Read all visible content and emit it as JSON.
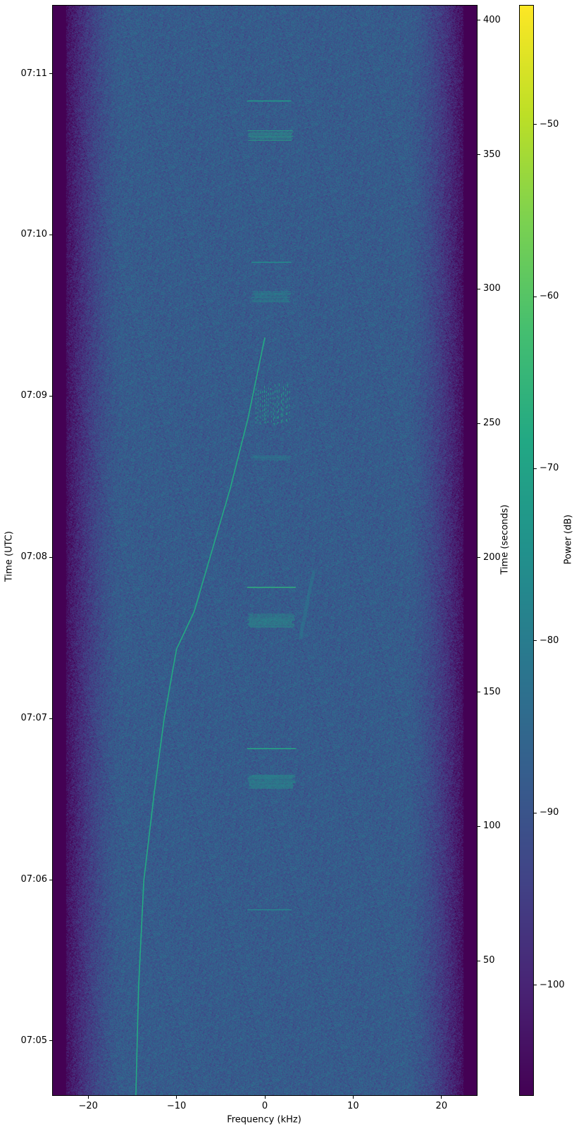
{
  "chart_data": {
    "type": "heatmap",
    "xlabel": "Frequency (kHz)",
    "ylabel": "Time (UTC)",
    "y2label": "Time (seconds)",
    "colorbar_label": "Power (dB)",
    "colormap": "viridis",
    "xlim": [
      -24,
      24
    ],
    "ylim": [
      0,
      405.5
    ],
    "clim": [
      -106.4,
      -43.1
    ],
    "grid": false,
    "x_ticks": [
      {
        "v": -20,
        "label": "−20"
      },
      {
        "v": -10,
        "label": "−10"
      },
      {
        "v": 0,
        "label": "0"
      },
      {
        "v": 10,
        "label": "10"
      },
      {
        "v": 20,
        "label": "20"
      }
    ],
    "y_ticks_utc": [
      {
        "v": 20.2,
        "label": "07:05"
      },
      {
        "v": 80.2,
        "label": "07:06"
      },
      {
        "v": 140.2,
        "label": "07:07"
      },
      {
        "v": 200.2,
        "label": "07:08"
      },
      {
        "v": 260.2,
        "label": "07:09"
      },
      {
        "v": 320.2,
        "label": "07:10"
      },
      {
        "v": 380.2,
        "label": "07:11"
      }
    ],
    "y_ticks_seconds": [
      {
        "v": 50,
        "label": "50"
      },
      {
        "v": 100,
        "label": "100"
      },
      {
        "v": 150,
        "label": "150"
      },
      {
        "v": 200,
        "label": "200"
      },
      {
        "v": 250,
        "label": "250"
      },
      {
        "v": 300,
        "label": "300"
      },
      {
        "v": 350,
        "label": "350"
      },
      {
        "v": 400,
        "label": "400"
      }
    ],
    "colorbar_ticks": [
      {
        "v": -50,
        "label": "−50"
      },
      {
        "v": -60,
        "label": "−60"
      },
      {
        "v": -70,
        "label": "−70"
      },
      {
        "v": -80,
        "label": "−80"
      },
      {
        "v": -90,
        "label": "−90"
      },
      {
        "v": -100,
        "label": "−100"
      }
    ],
    "noise_floor_db": -88,
    "band_edge_khz": 22.5,
    "chirp": {
      "power_db": -68,
      "points": [
        [
          -14.6,
          0
        ],
        [
          -14.3,
          40
        ],
        [
          -13.7,
          80
        ],
        [
          -12.5,
          113
        ],
        [
          -11.4,
          140
        ],
        [
          -10,
          166
        ],
        [
          -8,
          180
        ],
        [
          -5.6,
          207
        ],
        [
          -3.9,
          226
        ],
        [
          -1.9,
          252
        ],
        [
          0,
          282
        ]
      ]
    },
    "bursts": [
      {
        "kind": "line",
        "t": 69,
        "f": [
          -2,
          3
        ],
        "power_db": -78
      },
      {
        "kind": "band",
        "t": [
          114,
          119
        ],
        "f": [
          -2,
          3.5
        ],
        "power_db": -72
      },
      {
        "kind": "line",
        "t": 129,
        "f": [
          -2,
          3.5
        ],
        "power_db": -68
      },
      {
        "kind": "band",
        "t": [
          174,
          179
        ],
        "f": [
          -2,
          3.5
        ],
        "power_db": -70
      },
      {
        "kind": "line",
        "t": 189,
        "f": [
          -2,
          3.5
        ],
        "power_db": -66
      },
      {
        "kind": "band",
        "t": [
          236,
          238
        ],
        "f": [
          -1.5,
          3
        ],
        "power_db": -76
      },
      {
        "kind": "burst",
        "t": [
          249,
          265
        ],
        "f": [
          -1,
          3
        ],
        "power_db": -70
      },
      {
        "kind": "band",
        "t": [
          295,
          299
        ],
        "f": [
          -1.5,
          3
        ],
        "power_db": -74
      },
      {
        "kind": "line",
        "t": 310,
        "f": [
          -1.5,
          3
        ],
        "power_db": -76
      },
      {
        "kind": "band",
        "t": [
          355,
          359
        ],
        "f": [
          -2,
          3.5
        ],
        "power_db": -68
      },
      {
        "kind": "line",
        "t": 370,
        "f": [
          -2,
          3
        ],
        "power_db": -72
      }
    ],
    "faint_drift": {
      "points": [
        [
          4,
          170
        ],
        [
          4.6,
          180
        ],
        [
          5.2,
          190
        ],
        [
          5.6,
          195
        ]
      ],
      "power_db": -80
    }
  }
}
